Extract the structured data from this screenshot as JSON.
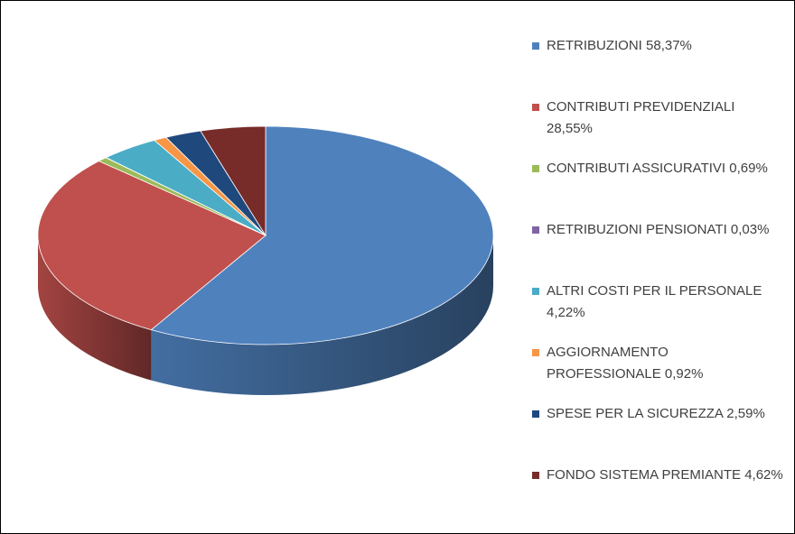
{
  "chart_data": {
    "type": "pie",
    "categories": [
      "RETRIBUZIONI",
      "CONTRIBUTI PREVIDENZIALI",
      "CONTRIBUTI ASSICURATIVI",
      "RETRIBUZIONI PENSIONATI",
      "ALTRI COSTI PER IL PERSONALE",
      "AGGIORNAMENTO PROFESSIONALE",
      "SPESE PER LA SICUREZZA",
      "FONDO SISTEMA PREMIANTE"
    ],
    "values": [
      58.37,
      28.55,
      0.69,
      0.03,
      4.22,
      0.92,
      2.59,
      4.62
    ],
    "value_labels": [
      "58,37%",
      "28,55%",
      "0,69%",
      "0,03%",
      "4,22%",
      "0,92%",
      "2,59%",
      "4,62%"
    ],
    "colors": [
      "#4f81bd",
      "#c0504d",
      "#9bbb59",
      "#8064a2",
      "#4bacc6",
      "#f79646",
      "#1f497d",
      "#772c2a"
    ],
    "legend": "right"
  }
}
